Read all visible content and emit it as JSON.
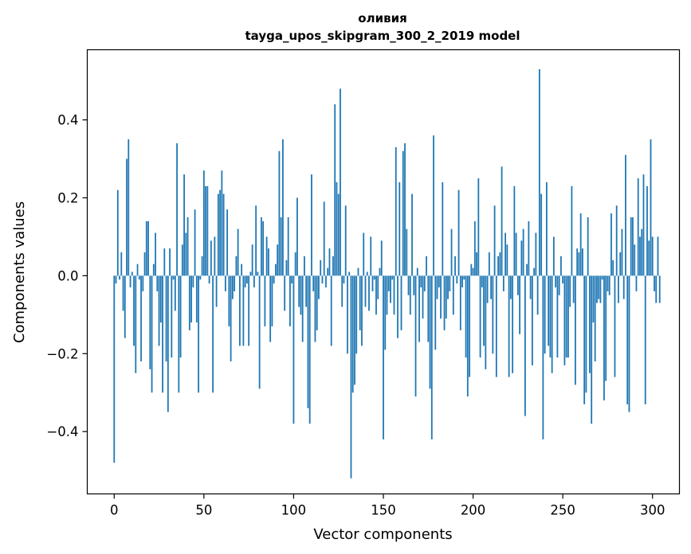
{
  "chart_data": {
    "type": "bar",
    "title": "оливия",
    "subtitle": "tayga_upos_skipgram_300_2_2019 model",
    "xlabel": "Vector components",
    "ylabel": "Components values",
    "xlim": [
      -15,
      315
    ],
    "ylim": [
      -0.56,
      0.58
    ],
    "xticks": [
      0,
      50,
      100,
      150,
      200,
      250,
      300
    ],
    "xtick_labels": [
      "0",
      "50",
      "100",
      "150",
      "200",
      "250",
      "300"
    ],
    "yticks": [
      -0.4,
      -0.2,
      0.0,
      0.2,
      0.4
    ],
    "ytick_labels": [
      "−0.4",
      "−0.2",
      "0.0",
      "0.2",
      "0.4"
    ],
    "bar_color": "#1f77b4",
    "series": [
      {
        "name": "components",
        "values": [
          -0.48,
          -0.02,
          0.22,
          -0.01,
          0.06,
          -0.09,
          -0.16,
          0.3,
          0.35,
          -0.03,
          0.01,
          -0.18,
          -0.25,
          0.03,
          -0.01,
          -0.22,
          -0.04,
          0.06,
          0.14,
          0.14,
          -0.24,
          -0.3,
          0.03,
          0.11,
          -0.04,
          -0.18,
          -0.12,
          -0.3,
          0.07,
          -0.22,
          -0.35,
          0.07,
          -0.21,
          -0.01,
          -0.09,
          0.34,
          -0.3,
          -0.21,
          0.08,
          0.26,
          0.11,
          0.15,
          -0.14,
          -0.12,
          -0.03,
          0.17,
          -0.12,
          -0.3,
          -0.01,
          0.05,
          0.27,
          0.23,
          0.23,
          -0.02,
          0.09,
          -0.3,
          0.1,
          -0.08,
          0.21,
          0.22,
          0.27,
          0.21,
          -0.04,
          0.17,
          -0.13,
          -0.22,
          -0.06,
          -0.04,
          0.05,
          0.12,
          -0.18,
          0.03,
          -0.18,
          -0.03,
          -0.02,
          -0.18,
          0.01,
          0.08,
          -0.03,
          0.18,
          0.01,
          -0.29,
          0.15,
          0.14,
          -0.13,
          0.1,
          0.07,
          -0.17,
          -0.13,
          -0.02,
          0.03,
          0.08,
          0.32,
          0.15,
          0.35,
          -0.09,
          0.04,
          0.15,
          -0.13,
          -0.02,
          -0.38,
          0.06,
          0.2,
          -0.08,
          -0.1,
          -0.17,
          0.05,
          -0.08,
          -0.34,
          -0.38,
          0.26,
          -0.04,
          -0.17,
          -0.14,
          -0.06,
          0.04,
          -0.02,
          0.19,
          -0.03,
          0.02,
          0.07,
          -0.18,
          0.05,
          0.44,
          0.24,
          0.21,
          0.48,
          -0.08,
          -0.02,
          0.18,
          -0.2,
          0.01,
          -0.52,
          -0.3,
          -0.28,
          -0.2,
          0.02,
          -0.14,
          -0.18,
          0.11,
          -0.08,
          0.01,
          -0.09,
          0.1,
          -0.04,
          -0.01,
          -0.1,
          -0.06,
          0.02,
          0.09,
          -0.42,
          -0.19,
          -0.1,
          -0.04,
          -0.07,
          -0.01,
          -0.1,
          0.33,
          -0.16,
          0.24,
          -0.14,
          0.32,
          0.34,
          0.12,
          -0.05,
          -0.1,
          0.21,
          -0.05,
          -0.31,
          0.02,
          -0.17,
          -0.03,
          -0.11,
          -0.04,
          0.05,
          -0.17,
          -0.29,
          -0.42,
          0.36,
          -0.19,
          -0.06,
          -0.03,
          -0.11,
          0.24,
          -0.14,
          -0.11,
          -0.06,
          -0.04,
          0.12,
          -0.1,
          0.05,
          -0.02,
          0.22,
          -0.14,
          -0.03,
          -0.01,
          -0.21,
          -0.31,
          -0.26,
          0.03,
          0.02,
          0.14,
          0.06,
          0.25,
          -0.21,
          -0.03,
          -0.18,
          -0.24,
          -0.07,
          0.06,
          -0.06,
          -0.2,
          0.18,
          -0.26,
          0.05,
          0.06,
          0.28,
          -0.04,
          0.11,
          0.08,
          -0.26,
          -0.06,
          -0.25,
          0.23,
          0.11,
          -0.05,
          -0.15,
          0.09,
          0.12,
          -0.36,
          0.03,
          0.14,
          -0.06,
          -0.23,
          0.02,
          0.11,
          -0.1,
          0.53,
          0.21,
          -0.42,
          -0.2,
          0.24,
          -0.18,
          -0.21,
          -0.25,
          0.1,
          -0.03,
          -0.21,
          -0.05,
          0.05,
          -0.02,
          -0.23,
          -0.21,
          -0.21,
          -0.08,
          0.23,
          -0.07,
          -0.28,
          0.07,
          0.06,
          0.16,
          0.07,
          -0.33,
          -0.3,
          0.15,
          -0.25,
          -0.38,
          -0.12,
          -0.22,
          -0.07,
          -0.06,
          -0.07,
          -0.01,
          -0.32,
          -0.27,
          -0.04,
          -0.05,
          0.16,
          0.04,
          -0.26,
          0.18,
          -0.07,
          0.06,
          0.12,
          -0.06,
          0.31,
          -0.33,
          -0.35,
          0.15,
          0.15,
          0.08,
          -0.04,
          0.25,
          0.1,
          0.12,
          0.26,
          -0.33,
          0.23,
          0.09,
          0.35,
          0.1,
          -0.04,
          -0.07,
          0.1,
          -0.07
        ]
      }
    ]
  }
}
